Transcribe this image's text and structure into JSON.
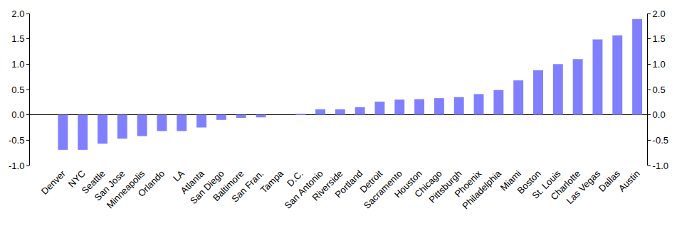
{
  "chart_data": {
    "type": "bar",
    "categories": [
      "Denver",
      "NYC",
      "Seattle",
      "San Jose",
      "Minneapolis",
      "Orlando",
      "LA",
      "Atlanta",
      "San Diego",
      "Baltimore",
      "San Fran.",
      "Tampa",
      "D.C.",
      "San Antonio",
      "Riverside",
      "Portland",
      "Detroit",
      "Sacramento",
      "Houston",
      "Chicago",
      "Pittsburgh",
      "Phoenix",
      "Philadelphia",
      "Miami",
      "Boston",
      "St. Louis",
      "Charlotte",
      "Las Vegas",
      "Dallas",
      "Austin"
    ],
    "values": [
      -0.69,
      -0.69,
      -0.57,
      -0.47,
      -0.42,
      -0.32,
      -0.32,
      -0.25,
      -0.1,
      -0.06,
      -0.05,
      0.0,
      0.02,
      0.11,
      0.11,
      0.15,
      0.26,
      0.3,
      0.31,
      0.33,
      0.35,
      0.41,
      0.49,
      0.68,
      0.88,
      1.0,
      1.1,
      1.49,
      1.57,
      1.89
    ],
    "color": "#8080ff",
    "ylim": [
      -1.0,
      2.0
    ],
    "yticks": [
      {
        "value": -1.0,
        "label": "-1.0"
      },
      {
        "value": -0.5,
        "label": "-0.5"
      },
      {
        "value": 0,
        "label": "0.0"
      },
      {
        "value": 0.5,
        "label": "0.5"
      },
      {
        "value": 1.0,
        "label": "1.0"
      },
      {
        "value": 1.5,
        "label": "1.5"
      },
      {
        "value": 2.0,
        "label": "2.0"
      }
    ],
    "y2lim": [
      -1.0,
      2.0
    ],
    "y2ticks": [
      {
        "value": -1.0,
        "label": "-1.0"
      },
      {
        "value": -0.5,
        "label": "-0.5"
      },
      {
        "value": 0,
        "label": "0.0"
      },
      {
        "value": 0.5,
        "label": "0.5"
      },
      {
        "value": 1.0,
        "label": "1.0"
      },
      {
        "value": 1.5,
        "label": "1.5"
      },
      {
        "value": 2.0,
        "label": "2.0"
      }
    ],
    "grid": false
  }
}
